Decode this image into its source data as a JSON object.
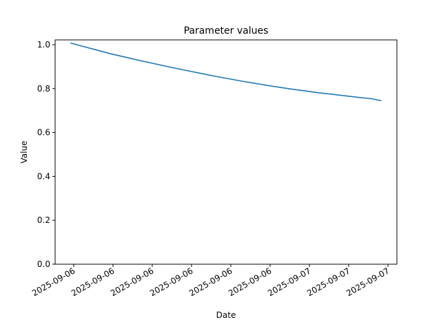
{
  "chart_data": {
    "type": "line",
    "title": "Parameter values",
    "xlabel": "Date",
    "ylabel": "Value",
    "ylim": [
      0,
      1.022
    ],
    "xlim": [
      "2025-09-06T04:35",
      "2025-09-07T06:41"
    ],
    "yticks": [
      0.0,
      0.2,
      0.4,
      0.6,
      0.8,
      1.0
    ],
    "ytick_labels": [
      "0.0",
      "0.2",
      "0.4",
      "0.6",
      "0.8",
      "1.0"
    ],
    "xticks": [
      "2025-09-06T06:00",
      "2025-09-06T09:00",
      "2025-09-06T12:00",
      "2025-09-06T15:00",
      "2025-09-06T18:00",
      "2025-09-06T21:00",
      "2025-09-07T00:00",
      "2025-09-07T03:00",
      "2025-09-07T06:00"
    ],
    "xtick_labels": [
      "2025-09-06",
      "2025-09-06",
      "2025-09-06",
      "2025-09-06",
      "2025-09-06",
      "2025-09-06",
      "2025-09-07",
      "2025-09-07",
      "2025-09-07"
    ],
    "grid": false,
    "color": "#1f77b4",
    "series": [
      {
        "x": [
          "2025-09-06T05:45",
          "2025-09-06T06:45",
          "2025-09-06T07:45",
          "2025-09-06T08:45",
          "2025-09-06T09:45",
          "2025-09-06T10:45",
          "2025-09-06T11:45",
          "2025-09-06T12:45",
          "2025-09-06T13:45",
          "2025-09-06T14:45",
          "2025-09-06T15:45",
          "2025-09-06T16:45",
          "2025-09-06T17:45",
          "2025-09-06T18:45",
          "2025-09-06T19:45",
          "2025-09-06T20:45",
          "2025-09-06T21:45",
          "2025-09-06T22:45",
          "2025-09-06T23:45",
          "2025-09-07T00:45",
          "2025-09-07T01:45",
          "2025-09-07T02:45",
          "2025-09-07T03:45",
          "2025-09-07T04:45",
          "2025-09-07T05:30"
        ],
        "y": [
          1.008,
          0.992,
          0.976,
          0.96,
          0.946,
          0.932,
          0.919,
          0.906,
          0.893,
          0.881,
          0.869,
          0.857,
          0.846,
          0.835,
          0.825,
          0.815,
          0.806,
          0.797,
          0.789,
          0.781,
          0.774,
          0.767,
          0.76,
          0.754,
          0.745
        ]
      }
    ]
  }
}
